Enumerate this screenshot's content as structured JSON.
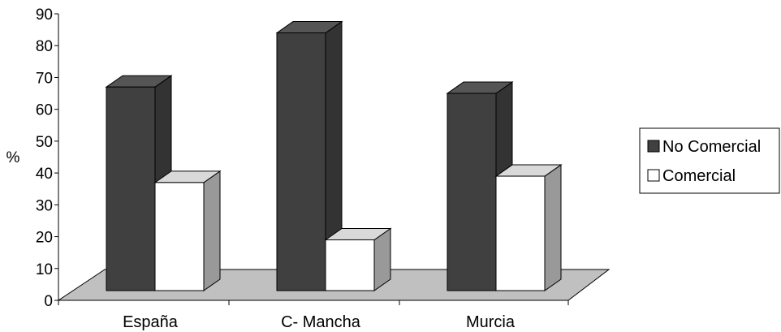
{
  "chart_data": {
    "type": "bar",
    "categories": [
      "España",
      "C- Mancha",
      "Murcia"
    ],
    "series": [
      {
        "name": "No Comercial",
        "values": [
          67,
          84,
          65
        ]
      },
      {
        "name": "Comercial",
        "values": [
          37,
          19,
          39
        ]
      }
    ],
    "ylabel": "%",
    "ylim": [
      0,
      90
    ],
    "yticks": [
      0,
      10,
      20,
      30,
      40,
      50,
      60,
      70,
      80,
      90
    ],
    "grid": false,
    "legend_position": "right",
    "style": "3d-column"
  },
  "colors": {
    "series_fill": [
      "#404040",
      "#ffffff"
    ],
    "series_side": [
      "#333333",
      "#999999"
    ],
    "series_top": [
      "#555555",
      "#d9d9d9"
    ],
    "floor": "#c0c0c0",
    "stroke": "#000000"
  }
}
